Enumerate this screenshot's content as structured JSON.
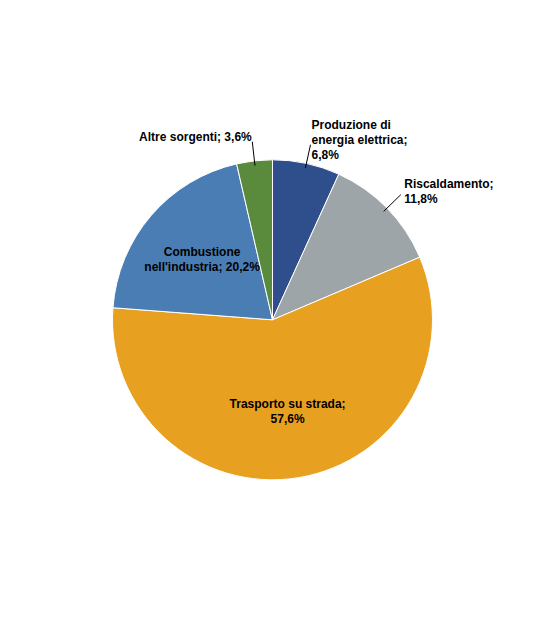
{
  "chart_data": {
    "type": "pie",
    "categories": [
      "Produzione di\nenergia elettrica;\n6,8%",
      "Riscaldamento;\n11,8%",
      "Trasporto su strada;\n57,6%",
      "Combustione\nnell'industria; 20,2%",
      "Altre sorgenti; 3,6%"
    ],
    "values": [
      6.8,
      11.8,
      57.6,
      20.2,
      3.6
    ],
    "colors": [
      "#2E4F8C",
      "#9EA5A8",
      "#E8A020",
      "#4B7DB5",
      "#5A8A3C"
    ]
  }
}
